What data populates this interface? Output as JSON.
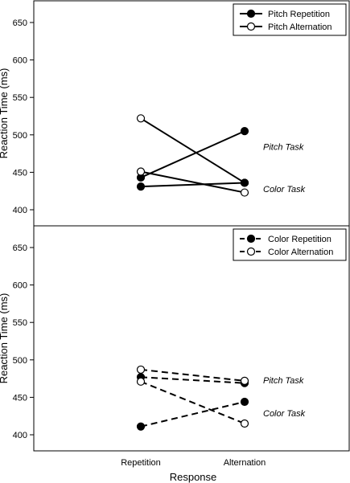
{
  "chart_data": [
    {
      "type": "line",
      "ylabel": "Reaction Time (ms)",
      "ylim": [
        380,
        670
      ],
      "yticks": [
        400,
        450,
        500,
        550,
        600,
        650
      ],
      "categories": [
        "Repetition",
        "Alternation"
      ],
      "line_style": "solid",
      "legend": {
        "placement": "top-right",
        "entries": [
          {
            "label": "Pitch Repetition",
            "marker": "filled"
          },
          {
            "label": "Pitch Alternation",
            "marker": "open"
          }
        ]
      },
      "series": [
        {
          "task": "Pitch Task",
          "marker": "filled",
          "values": [
            443,
            505
          ]
        },
        {
          "task": "Pitch Task",
          "marker": "open",
          "values": [
            522,
            436
          ]
        },
        {
          "task": "Color Task",
          "marker": "filled",
          "values": [
            431,
            436
          ]
        },
        {
          "task": "Color Task",
          "marker": "open",
          "values": [
            451,
            423
          ]
        }
      ],
      "annotations": [
        {
          "text": "Pitch Task",
          "y": 484
        },
        {
          "text": "Color Task",
          "y": 428
        }
      ]
    },
    {
      "type": "line",
      "ylabel": "Reaction Time (ms)",
      "ylim": [
        380,
        670
      ],
      "yticks": [
        400,
        450,
        500,
        550,
        600,
        650
      ],
      "categories": [
        "Repetition",
        "Alternation"
      ],
      "xlabel": "Response",
      "line_style": "dashed",
      "legend": {
        "placement": "top-right",
        "entries": [
          {
            "label": "Color Repetition",
            "marker": "filled"
          },
          {
            "label": "Color Alternation",
            "marker": "open"
          }
        ]
      },
      "series": [
        {
          "task": "Pitch Task",
          "marker": "filled",
          "values": [
            477,
            469
          ]
        },
        {
          "task": "Pitch Task",
          "marker": "open",
          "values": [
            487,
            472
          ]
        },
        {
          "task": "Color Task",
          "marker": "filled",
          "values": [
            411,
            444
          ]
        },
        {
          "task": "Color Task",
          "marker": "open",
          "values": [
            471,
            415
          ]
        }
      ],
      "annotations": [
        {
          "text": "Pitch Task",
          "y": 473
        },
        {
          "text": "Color Task",
          "y": 429
        }
      ]
    }
  ]
}
